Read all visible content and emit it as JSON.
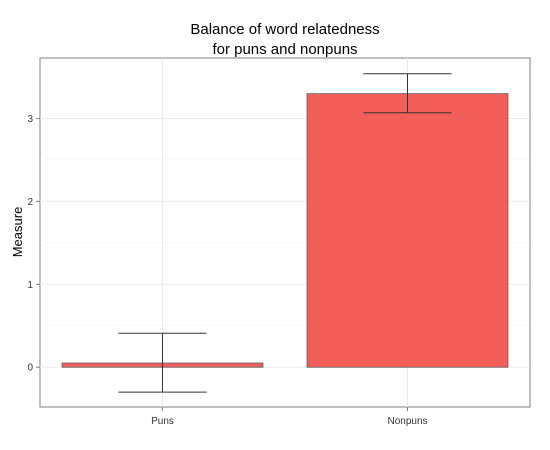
{
  "chart_data": {
    "type": "bar",
    "title": [
      "Balance of word relatedness",
      "for puns and nonpuns"
    ],
    "xlabel": "",
    "ylabel": "Measure",
    "categories": [
      "Puns",
      "Nonpuns"
    ],
    "values": [
      0.05,
      3.3
    ],
    "error_bars": [
      {
        "low": -0.3,
        "high": 0.41
      },
      {
        "low": 3.07,
        "high": 3.54
      }
    ],
    "ylim": [
      -0.48,
      3.73
    ],
    "yticks": [
      "0",
      "1",
      "2",
      "3"
    ],
    "grid": true,
    "legend": "none",
    "bar_color": "#F35E5A",
    "bar_border_color": "#5a5a5a",
    "errorbar_color": "#333333"
  }
}
